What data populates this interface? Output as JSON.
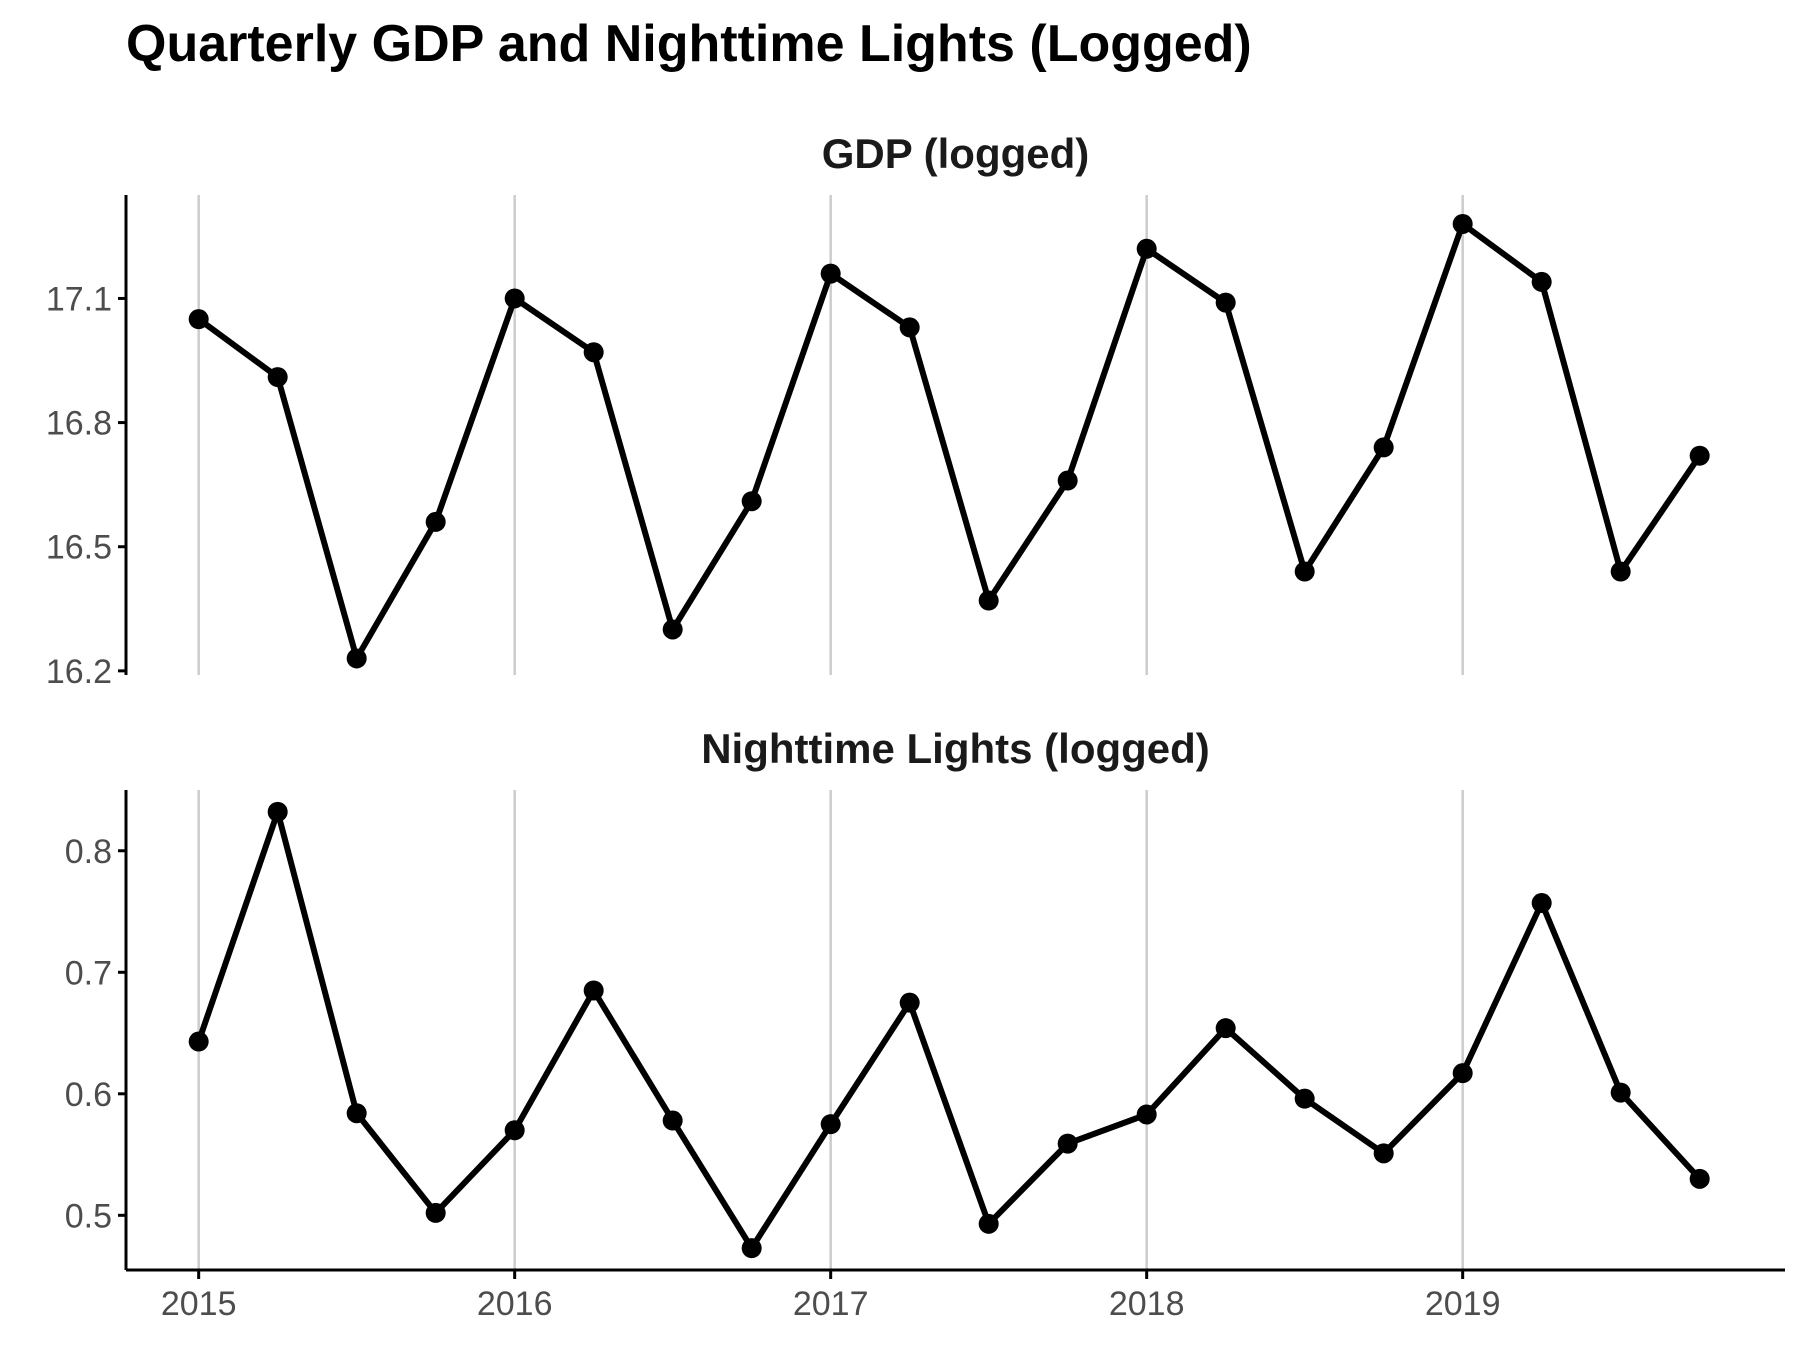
{
  "title": "Quarterly GDP and Nighttime Lights (Logged)",
  "chart_data": [
    {
      "type": "line",
      "title": "GDP (logged)",
      "xlabel": "",
      "ylabel": "",
      "x": [
        2015.0,
        2015.25,
        2015.5,
        2015.75,
        2016.0,
        2016.25,
        2016.5,
        2016.75,
        2017.0,
        2017.25,
        2017.5,
        2017.75,
        2018.0,
        2018.25,
        2018.5,
        2018.75,
        2019.0,
        2019.25,
        2019.5,
        2019.75
      ],
      "values": [
        17.05,
        16.91,
        16.23,
        16.56,
        17.1,
        16.97,
        16.3,
        16.61,
        17.16,
        17.03,
        16.37,
        16.66,
        17.22,
        17.09,
        16.44,
        16.74,
        17.28,
        17.14,
        16.44,
        16.72
      ],
      "xticks": [
        "2015",
        "2016",
        "2017",
        "2018",
        "2019"
      ],
      "yticks": [
        "16.2",
        "16.5",
        "16.8",
        "17.1"
      ],
      "ylim": [
        16.19,
        17.35
      ],
      "xlim": [
        2014.77,
        2020.02
      ],
      "grid": "vertical major",
      "line_color": "#000000",
      "grid_color": "#cccccc"
    },
    {
      "type": "line",
      "title": "Nighttime Lights (logged)",
      "xlabel": "",
      "ylabel": "",
      "x": [
        2015.0,
        2015.25,
        2015.5,
        2015.75,
        2016.0,
        2016.25,
        2016.5,
        2016.75,
        2017.0,
        2017.25,
        2017.5,
        2017.75,
        2018.0,
        2018.25,
        2018.5,
        2018.75,
        2019.0,
        2019.25,
        2019.5,
        2019.75
      ],
      "values": [
        0.643,
        0.832,
        0.584,
        0.502,
        0.57,
        0.685,
        0.578,
        0.473,
        0.575,
        0.675,
        0.493,
        0.559,
        0.583,
        0.654,
        0.596,
        0.551,
        0.617,
        0.757,
        0.601,
        0.53
      ],
      "xticks": [
        "2015",
        "2016",
        "2017",
        "2018",
        "2019"
      ],
      "yticks": [
        "0.5",
        "0.6",
        "0.7",
        "0.8"
      ],
      "ylim": [
        0.455,
        0.85
      ],
      "xlim": [
        2014.77,
        2020.02
      ],
      "grid": "vertical major",
      "line_color": "#000000",
      "grid_color": "#cccccc"
    }
  ]
}
